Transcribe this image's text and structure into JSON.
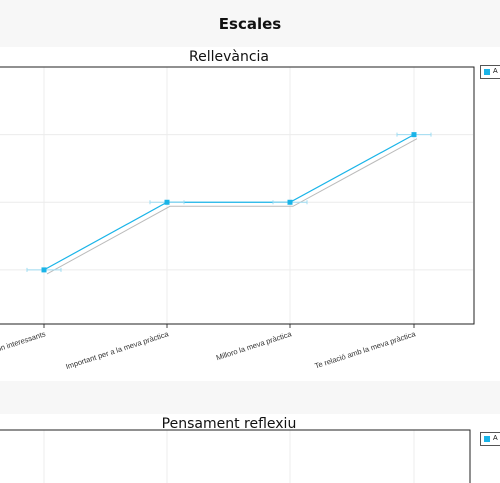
{
  "page": {
    "title": "Escales"
  },
  "chart_data": [
    {
      "type": "line",
      "title": "Rellevància",
      "categories": [
        "Són interessants",
        "Important per a la meva pràctica",
        "Milloro la meva pràctica",
        "Te relació amb la meva pràctica"
      ],
      "series": [
        {
          "name": "A",
          "values": [
            1.0,
            2.0,
            2.0,
            3.0
          ],
          "color": "#1ab4e8"
        }
      ],
      "reference_values": [
        0.97,
        1.97,
        1.97,
        2.97
      ],
      "reference_color": "#bbbbbb",
      "ylim": [
        0.2,
        4.0
      ],
      "grid": true,
      "legend": "top-right"
    },
    {
      "type": "line",
      "title": "Pensament reflexiu",
      "categories": [],
      "series": [
        {
          "name": "A",
          "values": [],
          "color": "#1ab4e8"
        }
      ],
      "grid": true,
      "legend": "top-right"
    }
  ]
}
